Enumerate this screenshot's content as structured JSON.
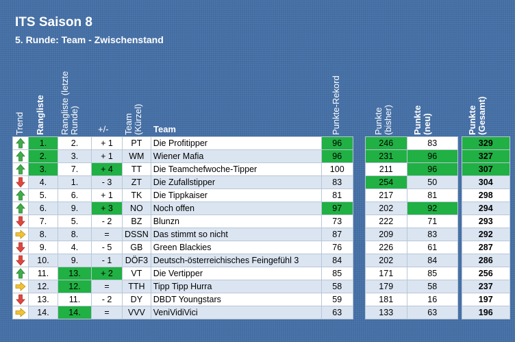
{
  "title": "ITS Saison 8",
  "subtitle": "5. Runde: Team - Zwischenstand",
  "headers": {
    "trend": "Trend",
    "rangliste": "Rangliste",
    "rangliste_letzte": "Rangliste (letzte Runde)",
    "plusminus": "+/-",
    "team_kuerzel": "Team (Kürzel)",
    "team": "Team",
    "rekord": "Punkte-Rekord",
    "punkte_bisher": "Punkte (bisher)",
    "punkte_neu": "Punkte (neu)",
    "punkte_gesamt": "Punkte (Gesamt)"
  },
  "colors": {
    "green_highlight": "#21b043",
    "up_arrow": "#3fae49",
    "down_arrow": "#e0473f",
    "same_arrow": "#f2c232"
  },
  "rows": [
    {
      "trend": "up",
      "rank": "1.",
      "prev": "2.",
      "diff": "+ 1",
      "code": "PT",
      "team": "Die Profitipper",
      "rekord": "96",
      "bisher": "246",
      "neu": "83",
      "gesamt": "329",
      "hl": {
        "rank": true,
        "diff": false,
        "rekord": true,
        "bisher": true,
        "neu": false,
        "gesamt": true
      }
    },
    {
      "trend": "up",
      "rank": "2.",
      "prev": "3.",
      "diff": "+ 1",
      "code": "WM",
      "team": "Wiener Mafia",
      "rekord": "96",
      "bisher": "231",
      "neu": "96",
      "gesamt": "327",
      "hl": {
        "rank": true,
        "diff": false,
        "rekord": true,
        "bisher": true,
        "neu": true,
        "gesamt": true
      }
    },
    {
      "trend": "up",
      "rank": "3.",
      "prev": "7.",
      "diff": "+ 4",
      "code": "TT",
      "team": "Die Teamchefwoche-Tipper",
      "rekord": "100",
      "bisher": "211",
      "neu": "96",
      "gesamt": "307",
      "hl": {
        "rank": true,
        "diff": true,
        "rekord": false,
        "bisher": false,
        "neu": true,
        "gesamt": true
      }
    },
    {
      "trend": "down",
      "rank": "4.",
      "prev": "1.",
      "diff": "- 3",
      "code": "ZT",
      "team": "Die Zufallstipper",
      "rekord": "83",
      "bisher": "254",
      "neu": "50",
      "gesamt": "304",
      "hl": {
        "rank": false,
        "diff": false,
        "rekord": false,
        "bisher": true,
        "neu": false,
        "gesamt": false
      }
    },
    {
      "trend": "up",
      "rank": "5.",
      "prev": "6.",
      "diff": "+ 1",
      "code": "TK",
      "team": "Die Tippkaiser",
      "rekord": "81",
      "bisher": "217",
      "neu": "81",
      "gesamt": "298",
      "hl": {
        "rank": false,
        "diff": false,
        "rekord": false,
        "bisher": false,
        "neu": false,
        "gesamt": false
      }
    },
    {
      "trend": "up",
      "rank": "6.",
      "prev": "9.",
      "diff": "+ 3",
      "code": "NO",
      "team": "Noch offen",
      "rekord": "97",
      "bisher": "202",
      "neu": "92",
      "gesamt": "294",
      "hl": {
        "rank": false,
        "diff": true,
        "rekord": true,
        "bisher": false,
        "neu": true,
        "gesamt": false
      }
    },
    {
      "trend": "down",
      "rank": "7.",
      "prev": "5.",
      "diff": "- 2",
      "code": "BZ",
      "team": "Blunzn",
      "rekord": "73",
      "bisher": "222",
      "neu": "71",
      "gesamt": "293",
      "hl": {
        "rank": false,
        "diff": false,
        "rekord": false,
        "bisher": false,
        "neu": false,
        "gesamt": false
      }
    },
    {
      "trend": "same",
      "rank": "8.",
      "prev": "8.",
      "diff": "=",
      "code": "DSSN",
      "team": "Das stimmt so nicht",
      "rekord": "87",
      "bisher": "209",
      "neu": "83",
      "gesamt": "292",
      "hl": {
        "rank": false,
        "diff": false,
        "rekord": false,
        "bisher": false,
        "neu": false,
        "gesamt": false
      }
    },
    {
      "trend": "down",
      "rank": "9.",
      "prev": "4.",
      "diff": "- 5",
      "code": "GB",
      "team": "Green Blackies",
      "rekord": "76",
      "bisher": "226",
      "neu": "61",
      "gesamt": "287",
      "hl": {
        "rank": false,
        "diff": false,
        "rekord": false,
        "bisher": false,
        "neu": false,
        "gesamt": false
      }
    },
    {
      "trend": "down",
      "rank": "10.",
      "prev": "9.",
      "diff": "- 1",
      "code": "DÖF3",
      "team": "Deutsch-österreichisches Feingefühl 3",
      "rekord": "84",
      "bisher": "202",
      "neu": "84",
      "gesamt": "286",
      "hl": {
        "rank": false,
        "diff": false,
        "rekord": false,
        "bisher": false,
        "neu": false,
        "gesamt": false
      }
    },
    {
      "trend": "up",
      "rank": "11.",
      "prev": "13.",
      "diff": "+ 2",
      "code": "VT",
      "team": "Die Vertipper",
      "rekord": "85",
      "bisher": "171",
      "neu": "85",
      "gesamt": "256",
      "hl": {
        "rank": false,
        "prev": true,
        "diff": true,
        "rekord": false,
        "bisher": false,
        "neu": false,
        "gesamt": false
      }
    },
    {
      "trend": "same",
      "rank": "12.",
      "prev": "12.",
      "diff": "=",
      "code": "TTH",
      "team": "Tipp Tipp Hurra",
      "rekord": "58",
      "bisher": "179",
      "neu": "58",
      "gesamt": "237",
      "hl": {
        "rank": false,
        "prev": true,
        "diff": false,
        "rekord": false,
        "bisher": false,
        "neu": false,
        "gesamt": false
      }
    },
    {
      "trend": "down",
      "rank": "13.",
      "prev": "11.",
      "diff": "- 2",
      "code": "DY",
      "team": "DBDT Youngstars",
      "rekord": "59",
      "bisher": "181",
      "neu": "16",
      "gesamt": "197",
      "hl": {
        "rank": false,
        "diff": false,
        "rekord": false,
        "bisher": false,
        "neu": false,
        "gesamt": false
      }
    },
    {
      "trend": "same",
      "rank": "14.",
      "prev": "14.",
      "diff": "=",
      "code": "VVV",
      "team": "VeniVidiVici",
      "rekord": "63",
      "bisher": "133",
      "neu": "63",
      "gesamt": "196",
      "hl": {
        "rank": false,
        "prev": true,
        "diff": false,
        "rekord": false,
        "bisher": false,
        "neu": false,
        "gesamt": false
      }
    }
  ]
}
